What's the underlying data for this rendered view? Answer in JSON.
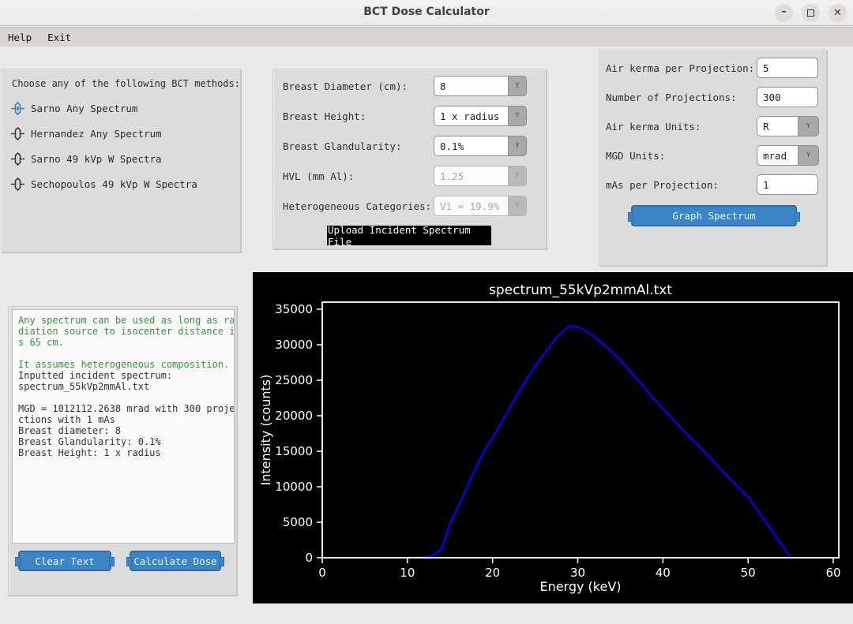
{
  "titlebar": {
    "title": "BCT Dose Calculator"
  },
  "icons": {
    "minimize": "–",
    "close": "✕",
    "combo_arrow": "Y"
  },
  "menubar": {
    "items": [
      "Help",
      "Exit"
    ]
  },
  "methods_panel": {
    "heading": "Choose any of the following BCT methods:",
    "options": [
      {
        "label": "Sarno Any Spectrum",
        "selected": true
      },
      {
        "label": "Hernandez Any Spectrum",
        "selected": false
      },
      {
        "label": "Sarno 49 kVp W Spectra",
        "selected": false
      },
      {
        "label": "Sechopoulos 49 kVp W Spectra",
        "selected": false
      }
    ]
  },
  "params_panel": {
    "rows": [
      {
        "name": "breast-diameter",
        "label": "Breast Diameter (cm):",
        "value": "8",
        "disabled": false
      },
      {
        "name": "breast-height",
        "label": "Breast Height:",
        "value": "1 x radius",
        "disabled": false
      },
      {
        "name": "breast-glandularity",
        "label": "Breast Glandularity:",
        "value": "0.1%",
        "disabled": false
      },
      {
        "name": "hvl",
        "label": "HVL (mm Al):",
        "value": "1.25",
        "disabled": true
      },
      {
        "name": "heterogeneous-categories",
        "label": "Heterogeneous Categories:",
        "value": "V1 = 19.9%",
        "disabled": true
      }
    ],
    "upload_button": "Upload Incident Spectrum File"
  },
  "projection_panel": {
    "rows": [
      {
        "name": "air-kerma-per-projection",
        "label": "Air kerma per Projection:",
        "value": "5",
        "control": "entry"
      },
      {
        "name": "number-of-projections",
        "label": "Number of Projections:",
        "value": "300",
        "control": "entry"
      },
      {
        "name": "air-kerma-units",
        "label": "Air kerma Units:",
        "value": "R",
        "control": "combo"
      },
      {
        "name": "mgd-units",
        "label": "MGD Units:",
        "value": "mrad",
        "control": "combo"
      },
      {
        "name": "mas-per-projection",
        "label": "mAs per Projection:",
        "value": "1",
        "control": "entry"
      }
    ],
    "graph_button": "Graph Spectrum"
  },
  "output_panel": {
    "lines": [
      {
        "t": "Any spectrum can be used as long as ra",
        "c": "green"
      },
      {
        "t": "diation source to isocenter distance i",
        "c": "green"
      },
      {
        "t": "s 65 cm.",
        "c": "green"
      },
      {
        "t": "",
        "c": "dark"
      },
      {
        "t": "It assumes heterogeneous composition.",
        "c": "green"
      },
      {
        "t": "Inputted incident spectrum:",
        "c": "dark"
      },
      {
        "t": "spectrum_55kVp2mmAl.txt",
        "c": "dark"
      },
      {
        "t": "",
        "c": "dark"
      },
      {
        "t": "MGD = 1012112.2638 mrad with 300 proje",
        "c": "dark"
      },
      {
        "t": "ctions with 1 mAs",
        "c": "dark"
      },
      {
        "t": "Breast diameter: 8",
        "c": "dark"
      },
      {
        "t": "Breast Glandularity: 0.1%",
        "c": "dark"
      },
      {
        "t": "Breast Height: 1 x radius",
        "c": "dark"
      }
    ],
    "clear_button": "Clear Text",
    "calculate_button": "Calculate Dose"
  },
  "chart_data": {
    "type": "line",
    "title": "spectrum_55kVp2mmAl.txt",
    "xlabel": "Energy (keV)",
    "ylabel": "Intensity (counts)",
    "xlim": [
      0,
      60.65
    ],
    "ylim": [
      0,
      36000
    ],
    "xticks": [
      0,
      10,
      20,
      30,
      40,
      50,
      60
    ],
    "yticks": [
      0,
      5000,
      10000,
      15000,
      20000,
      25000,
      30000,
      35000
    ],
    "grid": false,
    "legend": "none",
    "background": "#000000",
    "line_color": "#0404dd",
    "x": [
      10,
      11,
      12,
      13,
      14,
      15,
      16,
      17,
      18,
      19,
      20,
      21,
      22,
      23,
      24,
      25,
      26,
      27,
      28,
      29,
      30,
      31,
      32,
      33,
      34,
      35,
      36,
      37,
      38,
      39,
      40,
      41,
      42,
      43,
      44,
      45,
      46,
      47,
      48,
      49,
      50,
      51,
      52,
      53,
      54,
      55
    ],
    "y": [
      30,
      50,
      100,
      300,
      1200,
      4800,
      7300,
      10000,
      12600,
      15000,
      16900,
      19000,
      21100,
      23200,
      25200,
      27000,
      28700,
      30200,
      31600,
      32650,
      32500,
      31900,
      31100,
      30100,
      29000,
      27800,
      26500,
      25100,
      23700,
      22300,
      21000,
      19700,
      18450,
      17200,
      16000,
      14750,
      13500,
      12250,
      11000,
      9800,
      8550,
      6850,
      5150,
      3450,
      1750,
      0
    ]
  },
  "colors": {
    "accent_blue": "#3d85c6",
    "output_green": "#2f9b2f",
    "panel_gray": "#dcdcdc",
    "chart_bg": "#000000",
    "curve_blue": "#0404dd"
  }
}
